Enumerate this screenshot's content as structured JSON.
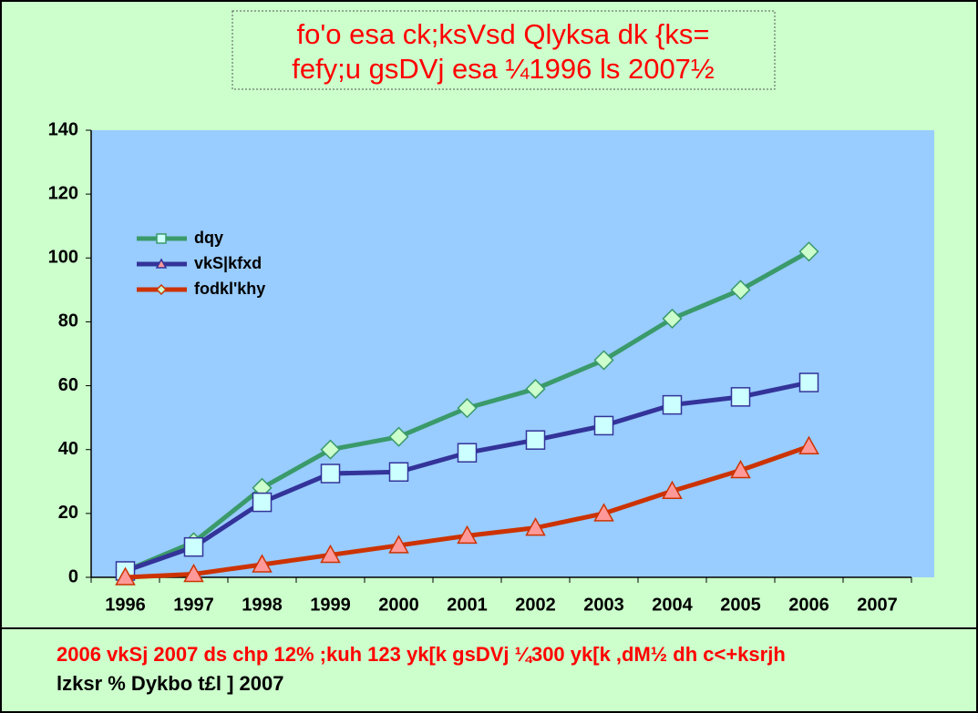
{
  "chart_data": {
    "type": "line",
    "title": [
      "fo'o esa ck;ksVsd Qlyksa dk {ks=",
      "fefy;u gsDVj esa ¼1996 ls 2007½"
    ],
    "categories": [
      "1996",
      "1997",
      "1998",
      "1999",
      "2000",
      "2001",
      "2002",
      "2003",
      "2004",
      "2005",
      "2006",
      "2007"
    ],
    "series": [
      {
        "name": "dqy",
        "color": "#3a9a6a",
        "marker": "diamond",
        "values": [
          2,
          11,
          28,
          40,
          44,
          53,
          59,
          68,
          81,
          90,
          102,
          null
        ]
      },
      {
        "name": "vkS|kfxd",
        "color": "#333399",
        "marker": "square",
        "values": [
          2,
          9.5,
          23.5,
          32.5,
          33,
          39,
          43,
          47.5,
          54,
          56.5,
          61,
          null
        ]
      },
      {
        "name": "fodkl'khy",
        "color": "#cc3300",
        "marker": "triangle",
        "values": [
          0,
          1,
          4,
          7,
          10,
          13,
          15.5,
          20,
          27,
          33.5,
          41,
          null
        ]
      }
    ],
    "ylim": [
      0,
      140
    ],
    "yticks": [
      0,
      20,
      40,
      60,
      80,
      100,
      120,
      140
    ],
    "footer": [
      "2006 vkSj 2007 ds chp 12% ;kuh 123 yk[k gsDVj ¼300 yk[k ,dM½ dh c<+ksrjh",
      "lzksr % Dykbo t£l ] 2007"
    ]
  }
}
